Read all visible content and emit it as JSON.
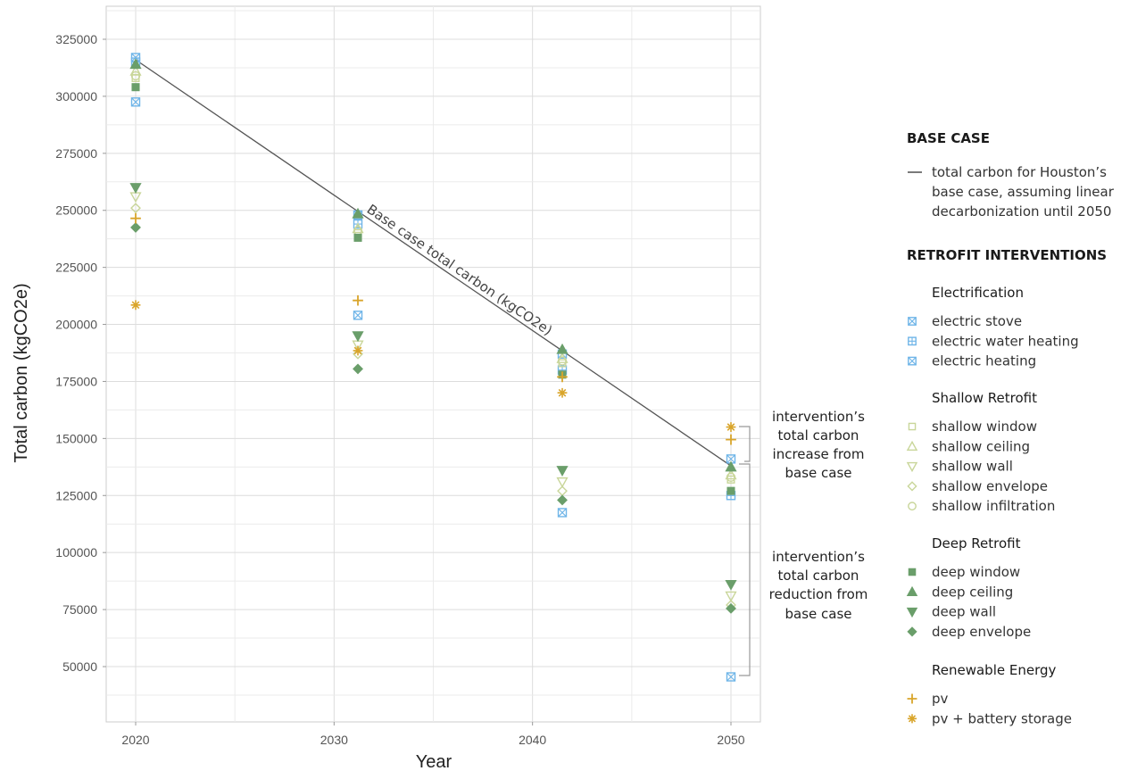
{
  "chart_data": {
    "type": "scatter",
    "xlabel": "Year",
    "ylabel": "Total carbon (kgCO2e)",
    "xlim": [
      2018.5,
      2051.5
    ],
    "ylim": [
      27000,
      340000
    ],
    "x_ticks": [
      2020,
      2030,
      2040,
      2050
    ],
    "y_ticks": [
      50000,
      75000,
      100000,
      125000,
      150000,
      175000,
      200000,
      225000,
      250000,
      275000,
      300000,
      325000
    ],
    "x_tick_labels": [
      "2020",
      "2030",
      "2040",
      "2050"
    ],
    "y_tick_labels": [
      "50000",
      "75000",
      "100000",
      "125000",
      "150000",
      "175000",
      "200000",
      "225000",
      "250000",
      "275000",
      "300000",
      "325000"
    ],
    "grid": true,
    "legend_position": "right",
    "base_case_line": {
      "x": [
        2020,
        2050
      ],
      "y": [
        316000,
        138000
      ],
      "label": "Base case total carbon (kgCO2e)",
      "color": "#555555"
    },
    "series": [
      {
        "name": "electric stove",
        "group": "Electrification",
        "marker": "box-x",
        "color": "#6fb5e8",
        "x": [
          2020,
          2031.2,
          2041.5,
          2050
        ],
        "y": [
          317000,
          248000,
          187000,
          141000
        ]
      },
      {
        "name": "electric water heating",
        "group": "Electrification",
        "marker": "box-plus",
        "color": "#6fb5e8",
        "x": [
          2020,
          2031.2,
          2041.5,
          2050
        ],
        "y": [
          315000,
          244000,
          180000,
          125000
        ]
      },
      {
        "name": "electric heating",
        "group": "Electrification",
        "marker": "box-x",
        "color": "#6fb5e8",
        "x": [
          2020,
          2031.2,
          2041.5,
          2050
        ],
        "y": [
          297500,
          204000,
          117500,
          45500
        ]
      },
      {
        "name": "shallow window",
        "group": "Shallow Retrofit",
        "marker": "square-open",
        "color": "#c9d69a",
        "x": [
          2020,
          2031.2,
          2041.5,
          2050
        ],
        "y": [
          308000,
          240000,
          183000,
          132000
        ]
      },
      {
        "name": "shallow ceiling",
        "group": "Shallow Retrofit",
        "marker": "triangle-up-open",
        "color": "#c9d69a",
        "x": [
          2020,
          2031.2,
          2041.5,
          2050
        ],
        "y": [
          311000,
          242000,
          185000,
          134000
        ]
      },
      {
        "name": "shallow wall",
        "group": "Shallow Retrofit",
        "marker": "triangle-down-open",
        "color": "#c9d69a",
        "x": [
          2020,
          2031.2,
          2041.5,
          2050
        ],
        "y": [
          256000,
          191000,
          131000,
          81000
        ]
      },
      {
        "name": "shallow envelope",
        "group": "Shallow Retrofit",
        "marker": "diamond-open",
        "color": "#c9d69a",
        "x": [
          2020,
          2031.2,
          2041.5,
          2050
        ],
        "y": [
          251000,
          187000,
          127000,
          77000
        ]
      },
      {
        "name": "shallow infiltration",
        "group": "Shallow Retrofit",
        "marker": "circle-open",
        "color": "#c9d69a",
        "x": [
          2020,
          2031.2,
          2041.5,
          2050
        ],
        "y": [
          309000,
          241000,
          184000,
          133000
        ]
      },
      {
        "name": "deep window",
        "group": "Deep Retrofit",
        "marker": "square",
        "color": "#6a9e6a",
        "x": [
          2020,
          2031.2,
          2041.5,
          2050
        ],
        "y": [
          304000,
          238000,
          178000,
          127000
        ]
      },
      {
        "name": "deep ceiling",
        "group": "Deep Retrofit",
        "marker": "triangle-up",
        "color": "#6a9e6a",
        "x": [
          2020,
          2031.2,
          2041.5,
          2050
        ],
        "y": [
          314000,
          248500,
          189000,
          137500
        ]
      },
      {
        "name": "deep wall",
        "group": "Deep Retrofit",
        "marker": "triangle-down",
        "color": "#6a9e6a",
        "x": [
          2020,
          2031.2,
          2041.5,
          2050
        ],
        "y": [
          260000,
          195000,
          136000,
          86000
        ]
      },
      {
        "name": "deep envelope",
        "group": "Deep Retrofit",
        "marker": "diamond",
        "color": "#6a9e6a",
        "x": [
          2020,
          2031.2,
          2041.5,
          2050
        ],
        "y": [
          242500,
          180500,
          123000,
          75500
        ]
      },
      {
        "name": "pv",
        "group": "Renewable Energy",
        "marker": "plus",
        "color": "#d9a52b",
        "x": [
          2020,
          2031.2,
          2041.5,
          2050
        ],
        "y": [
          246500,
          210500,
          177000,
          149500
        ]
      },
      {
        "name": "pv + battery storage",
        "group": "Renewable Energy",
        "marker": "asterisk",
        "color": "#d9a52b",
        "x": [
          2020,
          2031.2,
          2041.5,
          2050
        ],
        "y": [
          208500,
          188500,
          170000,
          155000
        ]
      }
    ]
  },
  "legend": {
    "base_case_header": "BASE CASE",
    "base_case_lines": [
      "total carbon for Houston’s",
      "base case, assuming linear",
      "decarbonization until 2050"
    ],
    "retrofit_header": "RETROFIT INTERVENTIONS",
    "groups": [
      {
        "title": "Electrification",
        "items": [
          "electric stove",
          "electric water heating",
          "electric heating"
        ]
      },
      {
        "title": "Shallow Retrofit",
        "items": [
          "shallow window",
          "shallow ceiling",
          "shallow wall",
          "shallow envelope",
          "shallow infiltration"
        ]
      },
      {
        "title": "Deep Retrofit",
        "items": [
          "deep window",
          "deep ceiling",
          "deep wall",
          "deep envelope"
        ]
      },
      {
        "title": "Renewable Energy",
        "items": [
          "pv",
          "pv + battery storage"
        ]
      }
    ]
  },
  "annotations": {
    "increase": [
      "intervention’s",
      "total carbon",
      "increase from",
      "base case"
    ],
    "reduction": [
      "intervention’s",
      "total carbon",
      "reduction from",
      "base case"
    ]
  }
}
